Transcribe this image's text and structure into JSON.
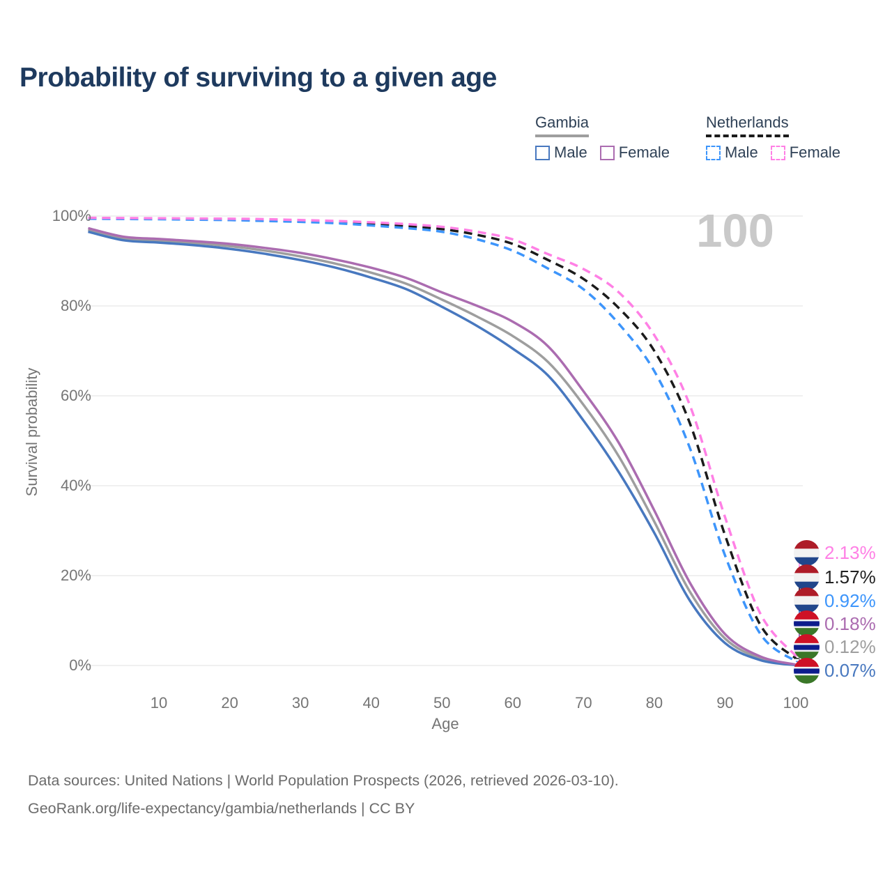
{
  "title": "Probability of surviving to a given age",
  "watermark": "100",
  "legend": {
    "groups": [
      {
        "name": "Gambia",
        "underline_style": "solid",
        "underline_color": "#9e9e9e",
        "items": [
          {
            "label": "Male",
            "color": "#4878bf",
            "dashed": false
          },
          {
            "label": "Female",
            "color": "#ab6cb0",
            "dashed": false
          }
        ]
      },
      {
        "name": "Netherlands",
        "underline_style": "dashed",
        "underline_color": "#1b1b1b",
        "items": [
          {
            "label": "Male",
            "color": "#3d95fb",
            "dashed": true
          },
          {
            "label": "Female",
            "color": "#ff80e5",
            "dashed": true
          }
        ]
      }
    ]
  },
  "chart_data": {
    "type": "line",
    "title": "Probability of surviving to a given age",
    "xlabel": "Age",
    "ylabel": "Survival probability",
    "xlim": [
      0,
      100
    ],
    "ylim": [
      0,
      100
    ],
    "grid": "horizontal",
    "legend_position": "top-right",
    "x_ticks": [
      10,
      20,
      30,
      40,
      50,
      60,
      70,
      80,
      90,
      100
    ],
    "y_ticks": [
      {
        "v": 0,
        "label": "0%"
      },
      {
        "v": 20,
        "label": "20%"
      },
      {
        "v": 40,
        "label": "40%"
      },
      {
        "v": 60,
        "label": "60%"
      },
      {
        "v": 80,
        "label": "80%"
      },
      {
        "v": 100,
        "label": "100%"
      }
    ],
    "x": [
      0,
      5,
      10,
      15,
      20,
      25,
      30,
      35,
      40,
      45,
      50,
      55,
      60,
      65,
      70,
      75,
      80,
      85,
      90,
      95,
      100
    ],
    "series": [
      {
        "name": "Gambia Both sexes",
        "country": "gambia",
        "sex": "both",
        "color": "#9e9e9e",
        "dash": false,
        "end_label": "0.12%",
        "values": [
          96.9,
          95.0,
          94.5,
          94.0,
          93.3,
          92.3,
          91.0,
          89.4,
          87.4,
          84.9,
          81.4,
          77.6,
          73.3,
          67.5,
          58.0,
          46.5,
          32.0,
          16.5,
          6.0,
          1.6,
          0.12
        ]
      },
      {
        "name": "Gambia Male",
        "country": "gambia",
        "sex": "male",
        "color": "#4878bf",
        "dash": false,
        "end_label": "0.07%",
        "values": [
          96.5,
          94.6,
          94.1,
          93.5,
          92.7,
          91.6,
          90.2,
          88.5,
          86.3,
          83.7,
          79.8,
          75.5,
          70.5,
          64.5,
          54.5,
          43.0,
          29.5,
          14.5,
          5.0,
          1.2,
          0.07
        ]
      },
      {
        "name": "Gambia Female",
        "country": "gambia",
        "sex": "female",
        "color": "#ab6cb0",
        "dash": false,
        "end_label": "0.18%",
        "values": [
          97.3,
          95.4,
          94.9,
          94.4,
          93.8,
          92.9,
          91.8,
          90.3,
          88.5,
          86.2,
          83.0,
          80.0,
          76.5,
          71.0,
          61.0,
          49.5,
          34.5,
          18.5,
          7.0,
          2.0,
          0.18
        ]
      },
      {
        "name": "Netherlands Both sexes",
        "country": "netherlands",
        "sex": "both",
        "color": "#1b1b1b",
        "dash": true,
        "end_label": "1.57%",
        "values": [
          99.5,
          99.45,
          99.4,
          99.3,
          99.2,
          99.1,
          98.9,
          98.6,
          98.3,
          97.8,
          97.1,
          95.8,
          93.8,
          90.2,
          86.0,
          79.5,
          70.0,
          54.0,
          29.0,
          9.0,
          1.57
        ]
      },
      {
        "name": "Netherlands Male",
        "country": "netherlands",
        "sex": "male",
        "color": "#3d95fb",
        "dash": true,
        "end_label": "0.92%",
        "values": [
          99.4,
          99.35,
          99.3,
          99.2,
          99.1,
          98.9,
          98.7,
          98.4,
          97.9,
          97.3,
          96.5,
          94.8,
          92.3,
          88.3,
          83.7,
          76.0,
          65.5,
          48.5,
          24.5,
          7.0,
          0.92
        ]
      },
      {
        "name": "Netherlands Female",
        "country": "netherlands",
        "sex": "female",
        "color": "#ff80e5",
        "dash": true,
        "end_label": "2.13%",
        "values": [
          99.6,
          99.55,
          99.5,
          99.45,
          99.4,
          99.3,
          99.1,
          98.9,
          98.6,
          98.2,
          97.6,
          96.5,
          94.8,
          91.5,
          88.2,
          83.0,
          73.5,
          58.0,
          33.0,
          11.5,
          2.13
        ]
      }
    ]
  },
  "end_labels": [
    {
      "value": "2.13%",
      "flag": "netherlands",
      "color": "#ff80e5"
    },
    {
      "value": "1.57%",
      "flag": "netherlands",
      "color": "#222222"
    },
    {
      "value": "0.92%",
      "flag": "netherlands",
      "color": "#3d95fb"
    },
    {
      "value": "0.18%",
      "flag": "gambia",
      "color": "#ab6cb0"
    },
    {
      "value": "0.12%",
      "flag": "gambia",
      "color": "#9e9e9e"
    },
    {
      "value": "0.07%",
      "flag": "gambia",
      "color": "#4878bf"
    }
  ],
  "flags": {
    "netherlands": [
      "#AE1C28",
      "#f2f2f2",
      "#21468B"
    ],
    "gambia": [
      "#CE1126",
      "#f2f2f2",
      "#0C1C8C",
      "#f2f2f2",
      "#3A7728"
    ]
  },
  "footer": {
    "line1": "Data sources: United Nations | World Population Prospects (2026, retrieved 2026-03-10).",
    "line2": "GeoRank.org/life-expectancy/gambia/netherlands | CC BY"
  },
  "colors": {
    "title": "#1e3a5e",
    "axis_text": "#757575",
    "grid": "#e8e8e8",
    "watermark": "#c9c9c9",
    "footer_text": "#6b6b6b",
    "legend_text": "#2f4156"
  }
}
